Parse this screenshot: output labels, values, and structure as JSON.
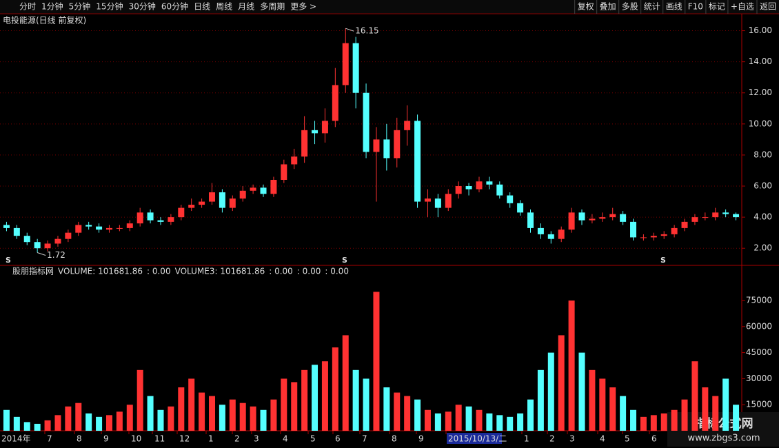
{
  "toolbar": {
    "left": [
      "分时",
      "1分钟",
      "5分钟",
      "15分钟",
      "30分钟",
      "60分钟",
      "日线",
      "周线",
      "月线",
      "多周期",
      "更多 >"
    ],
    "active_index": 6,
    "right": [
      "复权",
      "叠加",
      "多股",
      "统计",
      "画线",
      "F10",
      "标记",
      "+自选",
      "返回"
    ]
  },
  "chart_data": {
    "type": "candlestick",
    "title": "电投能源(日线 前复权)",
    "up_color": "#ff3232",
    "down_color": "#54ffff",
    "open": [
      3.5,
      3.3,
      2.8,
      2.4,
      2.0,
      2.3,
      2.6,
      3.0,
      3.5,
      3.4,
      3.2,
      3.3,
      3.3,
      3.6,
      4.3,
      3.8,
      3.7,
      4.0,
      4.6,
      4.8,
      5.0,
      5.6,
      4.6,
      5.2,
      5.7,
      5.9,
      5.5,
      6.4,
      7.4,
      7.9,
      9.6,
      9.4,
      10.2,
      12.5,
      15.2,
      12.0,
      8.2,
      9.0,
      7.8,
      9.6,
      10.2,
      5.0,
      5.2,
      4.6,
      5.5,
      6.0,
      5.8,
      6.3,
      6.1,
      5.4,
      4.9,
      4.3,
      3.3,
      2.9,
      2.6,
      3.2,
      4.3,
      3.8,
      3.9,
      4.0,
      4.2,
      3.7,
      2.7,
      2.7,
      2.8,
      2.9,
      3.3,
      3.7,
      4.0,
      4.0,
      4.3,
      4.2
    ],
    "high": [
      3.7,
      3.5,
      3.0,
      2.6,
      2.5,
      2.8,
      3.2,
      3.7,
      3.7,
      3.6,
      3.5,
      3.5,
      3.8,
      4.6,
      4.5,
      4.0,
      4.2,
      4.8,
      5.2,
      5.2,
      6.2,
      5.8,
      5.4,
      6.0,
      6.1,
      6.1,
      6.6,
      7.7,
      8.4,
      10.5,
      10.2,
      11.0,
      13.6,
      16.15,
      15.6,
      12.6,
      9.8,
      10.0,
      10.4,
      11.2,
      10.6,
      5.8,
      5.5,
      5.8,
      6.3,
      6.2,
      6.6,
      6.6,
      6.3,
      5.6,
      5.1,
      4.5,
      3.6,
      3.1,
      3.4,
      4.6,
      4.5,
      4.2,
      4.3,
      4.6,
      4.4,
      3.9,
      2.9,
      3.0,
      3.1,
      3.5,
      3.9,
      4.2,
      4.3,
      4.6,
      4.5,
      4.3
    ],
    "low": [
      3.1,
      2.6,
      2.2,
      1.72,
      1.8,
      2.1,
      2.4,
      2.8,
      3.2,
      3.0,
      3.0,
      3.1,
      3.1,
      3.4,
      3.6,
      3.5,
      3.5,
      3.8,
      4.4,
      4.6,
      4.8,
      4.3,
      4.4,
      5.0,
      5.5,
      5.3,
      5.3,
      6.2,
      7.1,
      7.5,
      8.7,
      8.8,
      9.8,
      12.0,
      11.0,
      7.8,
      5.0,
      7.0,
      7.2,
      8.6,
      4.6,
      4.0,
      4.0,
      4.4,
      5.2,
      5.4,
      5.6,
      5.8,
      5.2,
      4.6,
      4.1,
      3.0,
      2.6,
      2.3,
      2.4,
      3.0,
      3.5,
      3.6,
      3.7,
      3.8,
      3.5,
      2.5,
      2.5,
      2.5,
      2.6,
      2.7,
      3.1,
      3.5,
      3.8,
      3.8,
      4.0,
      3.8
    ],
    "close": [
      3.3,
      2.8,
      2.4,
      2.0,
      2.3,
      2.6,
      3.0,
      3.5,
      3.4,
      3.2,
      3.3,
      3.3,
      3.6,
      4.3,
      3.8,
      3.7,
      4.0,
      4.6,
      4.8,
      5.0,
      5.6,
      4.6,
      5.2,
      5.7,
      5.9,
      5.5,
      6.4,
      7.4,
      7.9,
      9.6,
      9.4,
      10.2,
      12.5,
      15.2,
      12.0,
      8.2,
      9.0,
      7.8,
      9.6,
      10.2,
      5.0,
      5.2,
      4.6,
      5.5,
      6.0,
      5.8,
      6.3,
      6.1,
      5.4,
      4.9,
      4.3,
      3.3,
      2.9,
      2.6,
      3.2,
      4.3,
      3.8,
      3.9,
      4.0,
      4.2,
      3.7,
      2.7,
      2.7,
      2.8,
      2.9,
      3.3,
      3.7,
      4.0,
      4.0,
      4.3,
      4.2,
      4.0
    ],
    "volume": [
      12000,
      8000,
      5000,
      4000,
      6000,
      9000,
      14000,
      16000,
      10000,
      8000,
      9000,
      11000,
      15000,
      35000,
      20000,
      12000,
      14000,
      25000,
      30000,
      22000,
      20000,
      15000,
      18000,
      16000,
      14000,
      12000,
      18000,
      30000,
      28000,
      35000,
      38000,
      40000,
      48000,
      55000,
      35000,
      30000,
      80000,
      25000,
      22000,
      20000,
      18000,
      12000,
      10000,
      11000,
      15000,
      14000,
      12000,
      10000,
      9000,
      8000,
      10000,
      18000,
      35000,
      45000,
      55000,
      75000,
      45000,
      35000,
      30000,
      25000,
      20000,
      12000,
      8000,
      9000,
      10000,
      12000,
      18000,
      40000,
      25000,
      20000,
      30000,
      15000
    ],
    "ylim": [
      0.9,
      17.0
    ],
    "yticks": [
      {
        "value": 2,
        "label": "2.00"
      },
      {
        "value": 4,
        "label": "4.00"
      },
      {
        "value": 6,
        "label": "6.00"
      },
      {
        "value": 8,
        "label": "8.00"
      },
      {
        "value": 10,
        "label": "10.00"
      },
      {
        "value": 12,
        "label": "12.00"
      },
      {
        "value": 14,
        "label": "14.00"
      },
      {
        "value": 16,
        "label": "16.00"
      }
    ],
    "grid": true,
    "volume_ylim": [
      0,
      89300
    ],
    "volume_yticks": [
      15000,
      30000,
      45000,
      60000,
      75000
    ],
    "signal_markers": [
      "S",
      "S",
      "S"
    ],
    "indicator_name": "股朋指标网",
    "indicator_items": [
      {
        "text": "VOLUME: 101681.86",
        "color": "#ffffff"
      },
      {
        "text": ": 0.00",
        "color": "#ffff00"
      },
      {
        "text": "VOLUME3: 101681.86",
        "color": "#ffff00"
      },
      {
        "text": ": 0.00",
        "color": "#ffff00"
      },
      {
        "text": ": 0.00",
        "color": "#ff00ff"
      },
      {
        "text": ": 0.00",
        "color": "#ff3232"
      }
    ],
    "date_labels": [
      "2014年",
      "7",
      "8",
      "9",
      "10",
      "11",
      "12",
      "1",
      "2",
      "3",
      "4",
      "5",
      "6",
      "7",
      "8",
      "9",
      "2015/10/13/二",
      "1",
      "2",
      "3",
      "4",
      "5",
      "6"
    ]
  },
  "watermark": {
    "title": "指标公式网",
    "url": "www.zbgs3.com"
  }
}
